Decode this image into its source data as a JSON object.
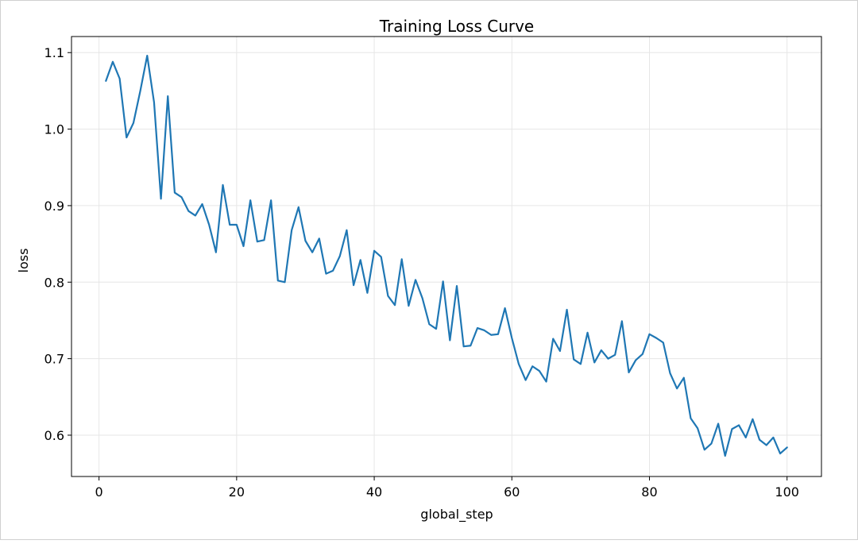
{
  "colors": {
    "line": "#1f77b4",
    "grid": "#e6e6e6",
    "axis": "#000000",
    "background": "#ffffff"
  },
  "chart_data": {
    "type": "line",
    "title": "Training Loss Curve",
    "xlabel": "global_step",
    "ylabel": "loss",
    "xlim": [
      -4,
      105
    ],
    "ylim": [
      0.546,
      1.121
    ],
    "grid": true,
    "xticks": [
      0,
      20,
      40,
      60,
      80,
      100
    ],
    "xtick_labels": [
      "0",
      "20",
      "40",
      "60",
      "80",
      "100"
    ],
    "yticks": [
      0.6,
      0.7,
      0.8,
      0.9,
      1.0,
      1.1
    ],
    "ytick_labels": [
      "0.6",
      "0.7",
      "0.8",
      "0.9",
      "1.0",
      "1.1"
    ],
    "series": [
      {
        "name": "loss",
        "x": [
          1,
          2,
          3,
          4,
          5,
          6,
          7,
          8,
          9,
          10,
          11,
          12,
          13,
          14,
          15,
          16,
          17,
          18,
          19,
          20,
          21,
          22,
          23,
          24,
          25,
          26,
          27,
          28,
          29,
          30,
          31,
          32,
          33,
          34,
          35,
          36,
          37,
          38,
          39,
          40,
          41,
          42,
          43,
          44,
          45,
          46,
          47,
          48,
          49,
          50,
          51,
          52,
          53,
          54,
          55,
          56,
          57,
          58,
          59,
          60,
          61,
          62,
          63,
          64,
          65,
          66,
          67,
          68,
          69,
          70,
          71,
          72,
          73,
          74,
          75,
          76,
          77,
          78,
          79,
          80,
          81,
          82,
          83,
          84,
          85,
          86,
          87,
          88,
          89,
          90,
          91,
          92,
          93,
          94,
          95,
          96,
          97,
          98,
          99,
          100
        ],
        "y": [
          1.063,
          1.088,
          1.066,
          0.989,
          1.008,
          1.05,
          1.096,
          1.035,
          0.909,
          1.043,
          0.917,
          0.911,
          0.893,
          0.887,
          0.902,
          0.875,
          0.839,
          0.927,
          0.875,
          0.875,
          0.847,
          0.907,
          0.853,
          0.855,
          0.907,
          0.802,
          0.8,
          0.868,
          0.898,
          0.854,
          0.839,
          0.857,
          0.811,
          0.815,
          0.834,
          0.868,
          0.796,
          0.829,
          0.786,
          0.841,
          0.833,
          0.782,
          0.77,
          0.83,
          0.769,
          0.803,
          0.779,
          0.745,
          0.739,
          0.801,
          0.724,
          0.795,
          0.716,
          0.717,
          0.74,
          0.737,
          0.731,
          0.732,
          0.766,
          0.727,
          0.693,
          0.672,
          0.69,
          0.684,
          0.67,
          0.726,
          0.71,
          0.764,
          0.699,
          0.693,
          0.734,
          0.695,
          0.711,
          0.7,
          0.705,
          0.749,
          0.682,
          0.698,
          0.706,
          0.732,
          0.727,
          0.721,
          0.681,
          0.661,
          0.675,
          0.622,
          0.609,
          0.581,
          0.589,
          0.615,
          0.573,
          0.608,
          0.613,
          0.597,
          0.621,
          0.594,
          0.587,
          0.597,
          0.576,
          0.584
        ]
      }
    ]
  }
}
